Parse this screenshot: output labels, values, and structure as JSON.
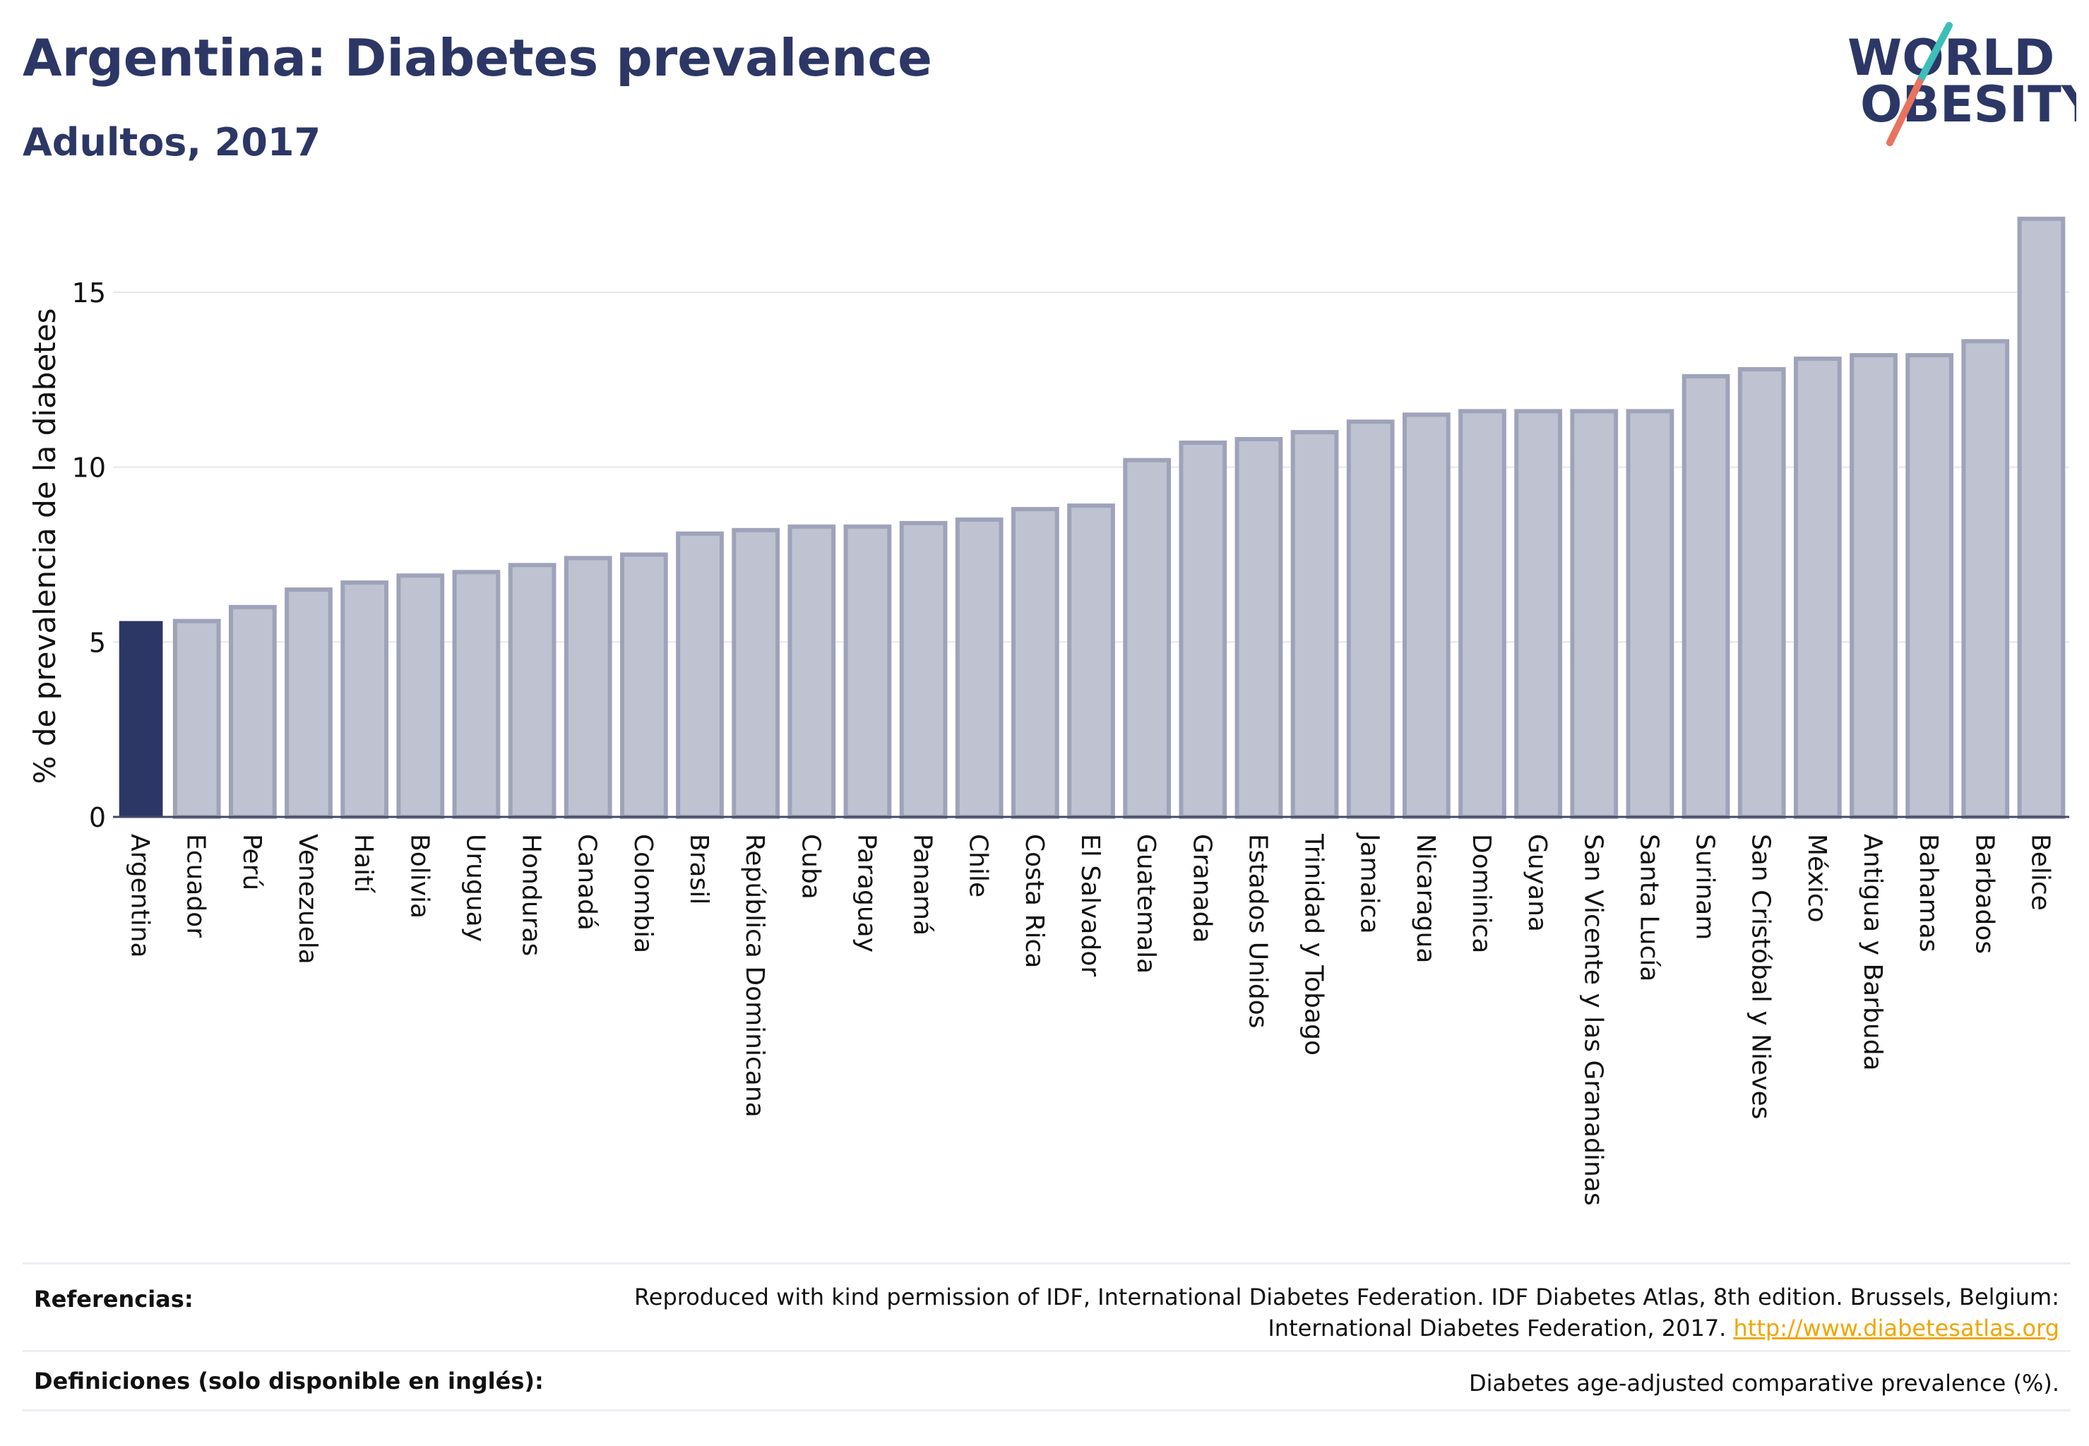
{
  "header": {
    "title": "Argentina: Diabetes prevalence",
    "subtitle": "Adultos, 2017"
  },
  "logo": {
    "line1": "WORLD",
    "line2": "OBESITY",
    "icon": "world-obesity-logo",
    "colors": {
      "text": "#2c3766",
      "slash_top": "#3bbfb8",
      "slash_bottom": "#e8735f"
    }
  },
  "chart_data": {
    "type": "bar",
    "title": "Argentina: Diabetes prevalence",
    "subtitle": "Adultos, 2017",
    "ylabel": "% de prevalencia de la diabetes",
    "xlabel": "",
    "ylim": [
      0,
      17.3
    ],
    "yticks": [
      0,
      5,
      10,
      15
    ],
    "grid": true,
    "highlight": "Argentina",
    "colors": {
      "highlight": "#2c3766",
      "bar_fill": "#bfc2d0",
      "bar_stroke": "#9ea3ba",
      "grid": "#e4e6ee"
    },
    "categories": [
      "Argentina",
      "Ecuador",
      "Perú",
      "Venezuela",
      "Haití",
      "Bolivia",
      "Uruguay",
      "Honduras",
      "Canadá",
      "Colombia",
      "Brasil",
      "República Dominicana",
      "Cuba",
      "Paraguay",
      "Panamá",
      "Chile",
      "Costa Rica",
      "El Salvador",
      "Guatemala",
      "Granada",
      "Estados Unidos",
      "Trinidad y Tobago",
      "Jamaica",
      "Nicaragua",
      "Dominica",
      "Guyana",
      "San Vicente y las Granadinas",
      "Santa Lucía",
      "Surinam",
      "San Cristóbal y Nieves",
      "México",
      "Antigua y Barbuda",
      "Bahamas",
      "Barbados",
      "Belice"
    ],
    "values": [
      5.6,
      5.6,
      6.0,
      6.5,
      6.7,
      6.9,
      7.0,
      7.2,
      7.4,
      7.5,
      8.1,
      8.2,
      8.3,
      8.3,
      8.4,
      8.5,
      8.8,
      8.9,
      10.2,
      10.7,
      10.8,
      11.0,
      11.3,
      11.5,
      11.6,
      11.6,
      11.6,
      11.6,
      12.6,
      12.8,
      13.1,
      13.2,
      13.2,
      13.6,
      17.1
    ]
  },
  "footer": {
    "references_label": "Referencias:",
    "references_line1": "Reproduced with kind permission of IDF, International Diabetes Federation. IDF Diabetes Atlas, 8th edition. Brussels, Belgium:",
    "references_line2": "International Diabetes Federation, 2017.",
    "references_link": "http://www.diabetesatlas.org",
    "definitions_label": "Definiciones (solo disponible en inglés):",
    "definitions_text": "Diabetes age-adjusted comparative prevalence (%)."
  }
}
